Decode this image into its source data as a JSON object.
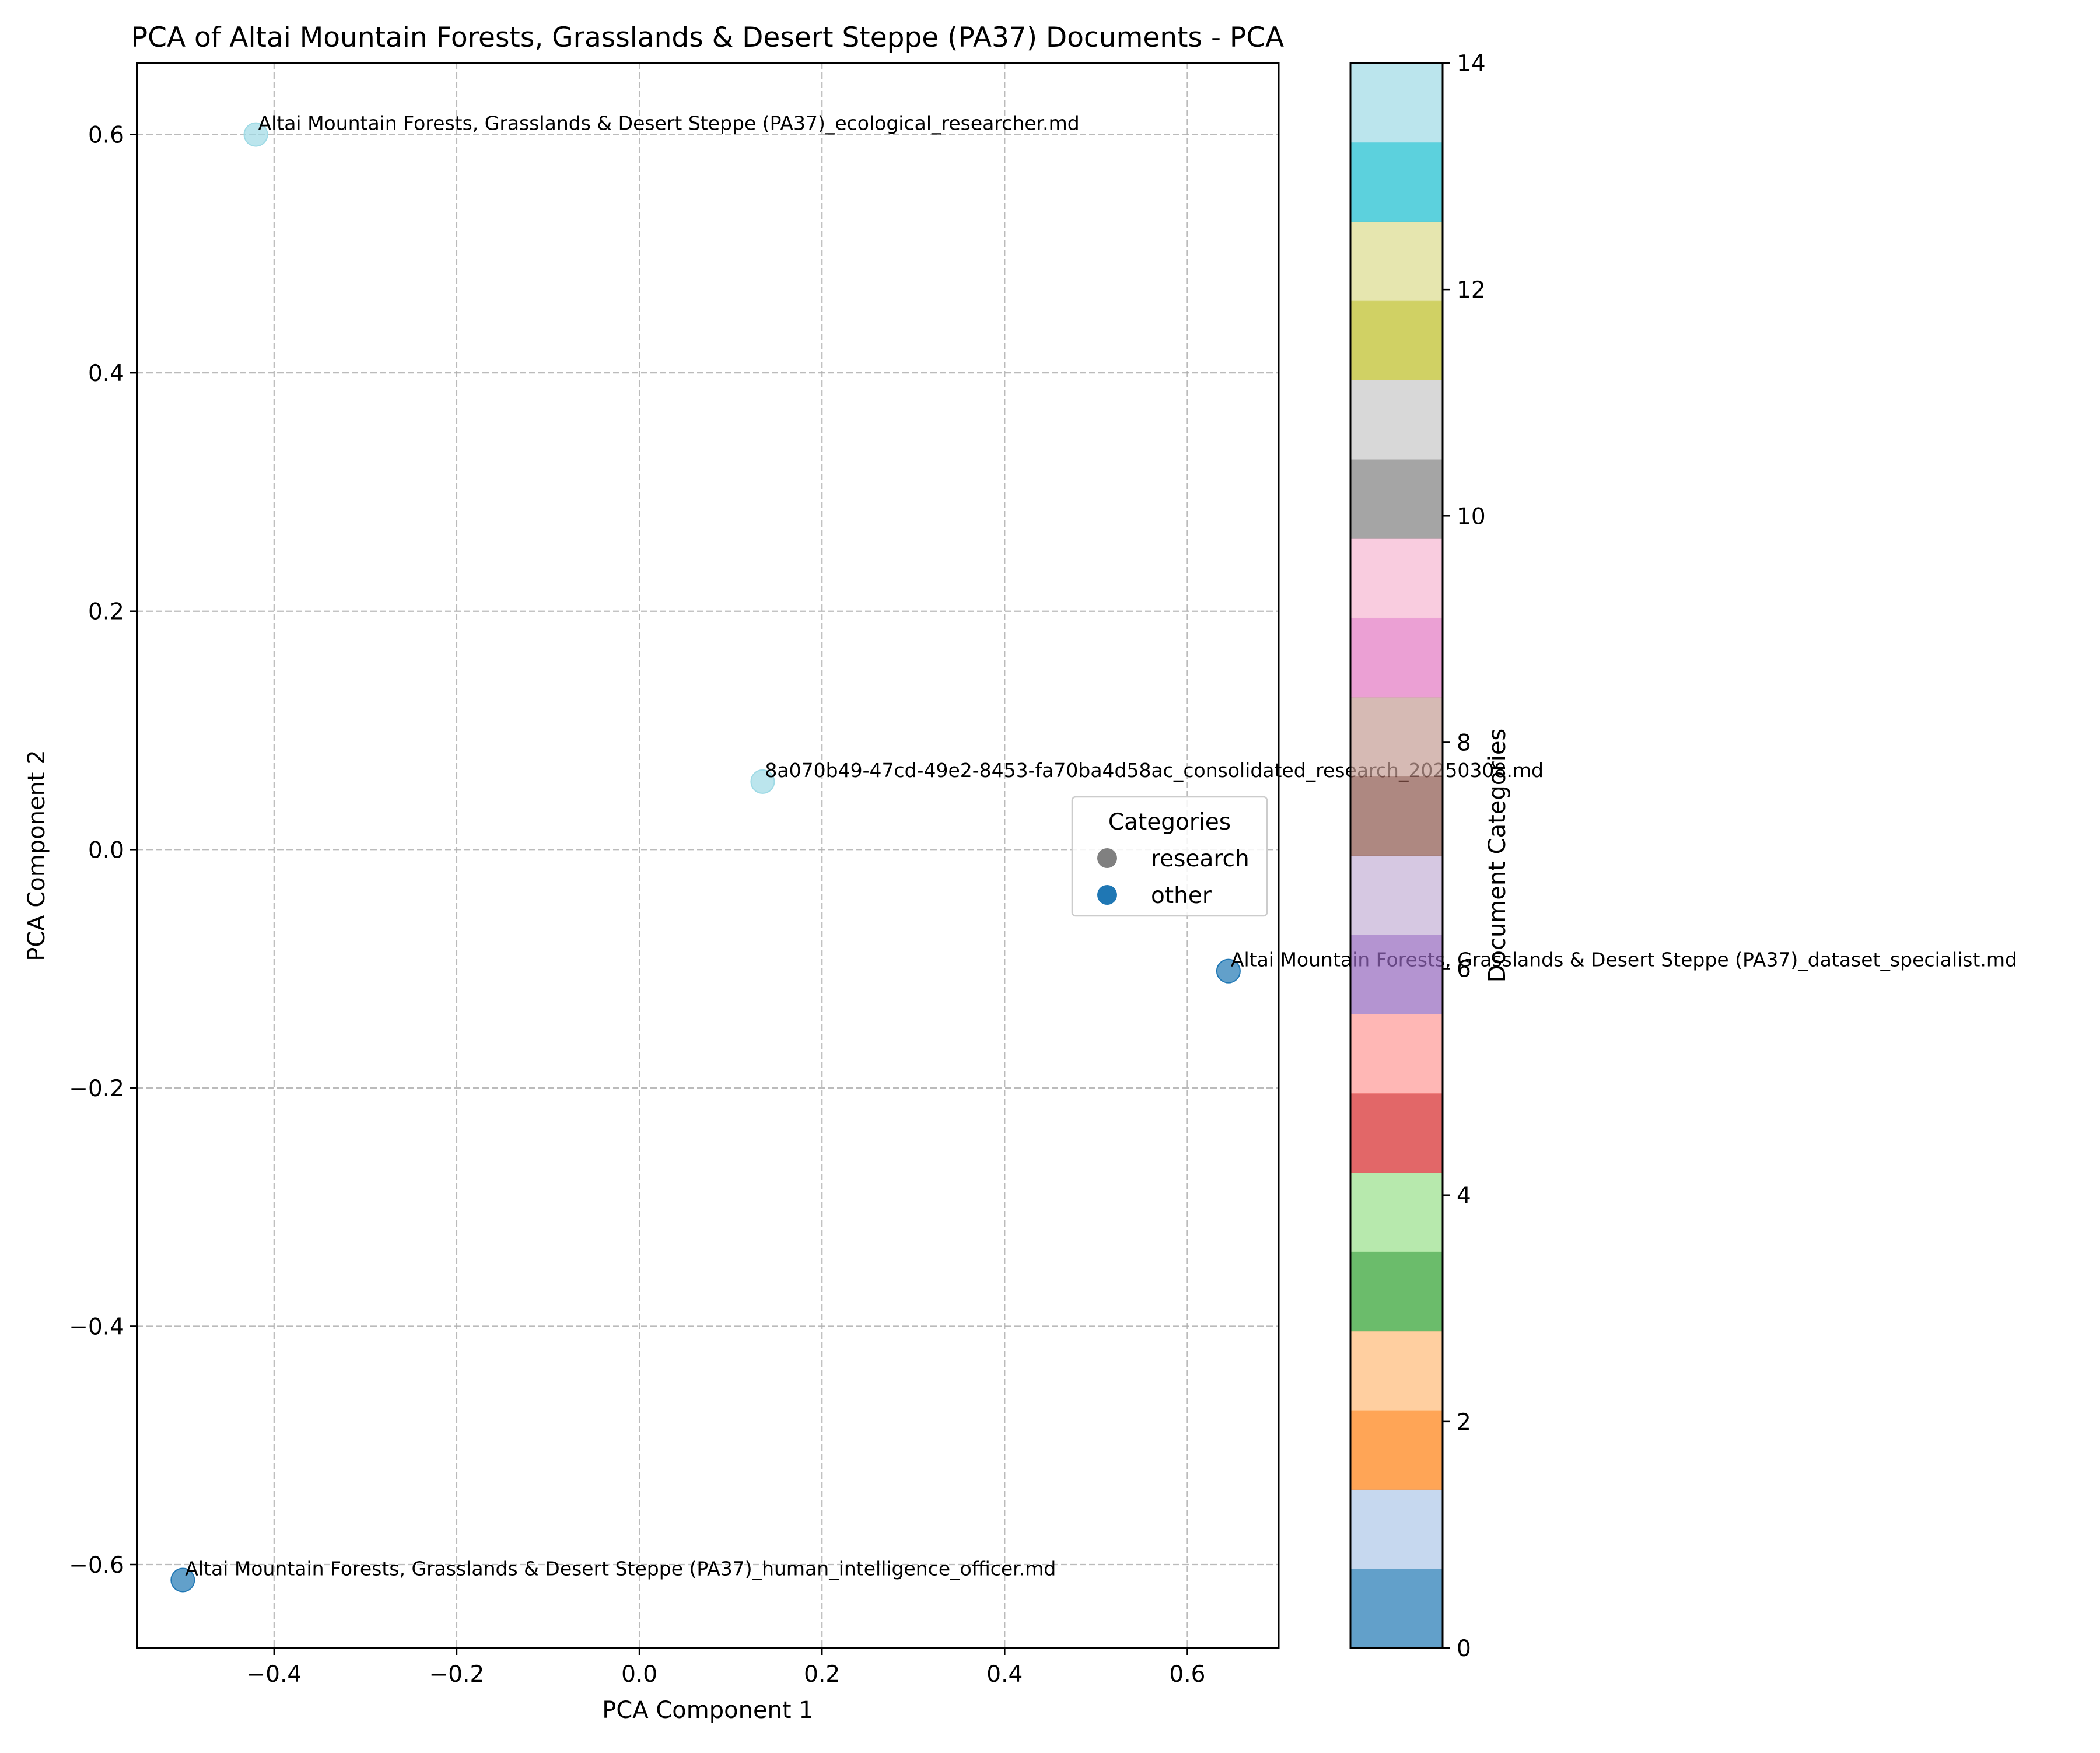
{
  "chart_data": {
    "type": "scatter",
    "title": "PCA of Altai Mountain Forests, Grasslands & Desert Steppe (PA37) Documents - PCA",
    "xlabel": "PCA Component 1",
    "ylabel": "PCA Component 2",
    "xlim": [
      -0.55,
      0.7
    ],
    "ylim": [
      -0.67,
      0.66
    ],
    "xticks": [
      -0.4,
      -0.2,
      0.0,
      0.2,
      0.4,
      0.6
    ],
    "xtick_labels": [
      "−0.4",
      "−0.2",
      "0.0",
      "0.2",
      "0.4",
      "0.6"
    ],
    "yticks": [
      -0.6,
      -0.4,
      -0.2,
      0.0,
      0.2,
      0.4,
      0.6
    ],
    "ytick_labels": [
      "−0.6",
      "−0.4",
      "−0.2",
      "0.0",
      "0.2",
      "0.4",
      "0.6"
    ],
    "grid": true,
    "points": [
      {
        "x": -0.42,
        "y": 0.6,
        "category_value": 14,
        "label": "Altai Mountain Forests, Grasslands & Desert Steppe (PA37)_ecological_researcher.md"
      },
      {
        "x": 0.135,
        "y": 0.057,
        "category_value": 14,
        "label": "8a070b49-47cd-49e2-8453-fa70ba4d58ac_consolidated_research_20250308.md"
      },
      {
        "x": 0.645,
        "y": -0.102,
        "category_value": 0,
        "label": "Altai Mountain Forests, Grasslands & Desert Steppe (PA37)_dataset_specialist.md"
      },
      {
        "x": -0.5,
        "y": -0.613,
        "category_value": 0,
        "label": "Altai Mountain Forests, Grasslands & Desert Steppe (PA37)_human_intelligence_officer.md"
      }
    ],
    "legend": {
      "title": "Categories",
      "placement": "center-right",
      "entries": [
        {
          "label": "research",
          "color": "#808080"
        },
        {
          "label": "other",
          "color": "#1f77b4"
        }
      ]
    },
    "colorbar": {
      "label": "Document Categories",
      "min": 0,
      "max": 14,
      "ticks": [
        0,
        2,
        4,
        6,
        8,
        10,
        12,
        14
      ],
      "tick_labels": [
        "0",
        "2",
        "4",
        "6",
        "8",
        "10",
        "12",
        "14"
      ],
      "colormap": "tab20",
      "colors": [
        "#1f77b4",
        "#aec7e8",
        "#ff7f0e",
        "#ffbb78",
        "#2ca02c",
        "#98df8a",
        "#d62728",
        "#ff9896",
        "#9467bd",
        "#c5b0d5",
        "#8c564b",
        "#c49c94",
        "#e377c2",
        "#f7b6d2",
        "#7f7f7f",
        "#c7c7c7",
        "#bcbd22",
        "#dbdb8d",
        "#17becf",
        "#9edae5"
      ]
    }
  }
}
